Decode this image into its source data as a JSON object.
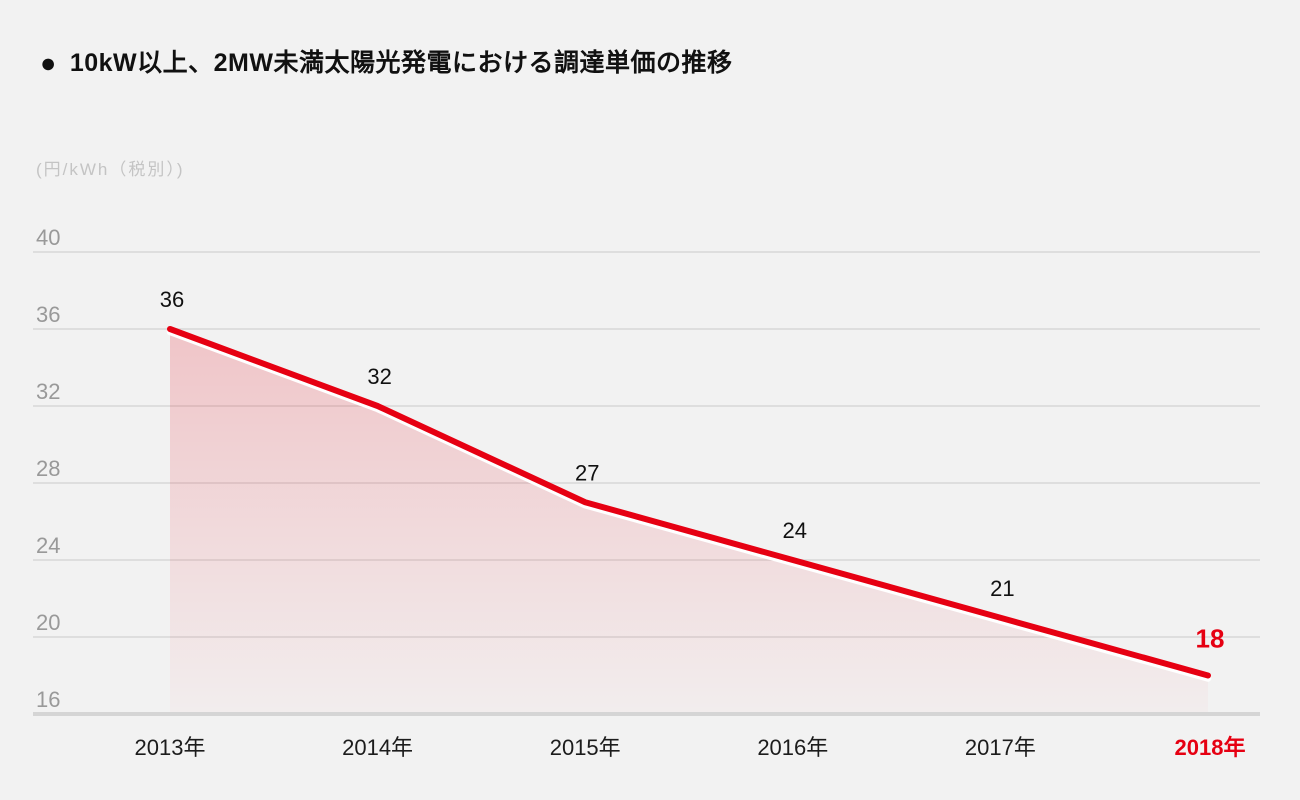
{
  "header": {
    "bullet": "●",
    "title": "10kW以上、2MW未満太陽光発電における調達単価の推移"
  },
  "chart_data": {
    "type": "area",
    "title": "10kW以上、2MW未満太陽光発電における調達単価の推移",
    "unit_label": "(円/kWh（税別）)",
    "categories": [
      "2013年",
      "2014年",
      "2015年",
      "2016年",
      "2017年",
      "2018年"
    ],
    "values": [
      36,
      32,
      27,
      24,
      21,
      18
    ],
    "ylim": [
      16,
      40
    ],
    "yticks": [
      40,
      36,
      32,
      28,
      24,
      20,
      16
    ],
    "grid": true,
    "legend": "none",
    "highlight_last_index": 5,
    "colors": {
      "line": "#e60012",
      "line_shadow": "#ffffff",
      "highlight": "#e60012",
      "area_top": "rgba(230,0,18,0.19)",
      "area_bottom": "rgba(230,0,18,0.02)",
      "grid": "#dedede",
      "axis": "#d5d5d5",
      "ytick_label": "#999999",
      "xtick_label": "#1c1c1c",
      "data_label": "#111111",
      "background": "#f2f2f2"
    }
  }
}
